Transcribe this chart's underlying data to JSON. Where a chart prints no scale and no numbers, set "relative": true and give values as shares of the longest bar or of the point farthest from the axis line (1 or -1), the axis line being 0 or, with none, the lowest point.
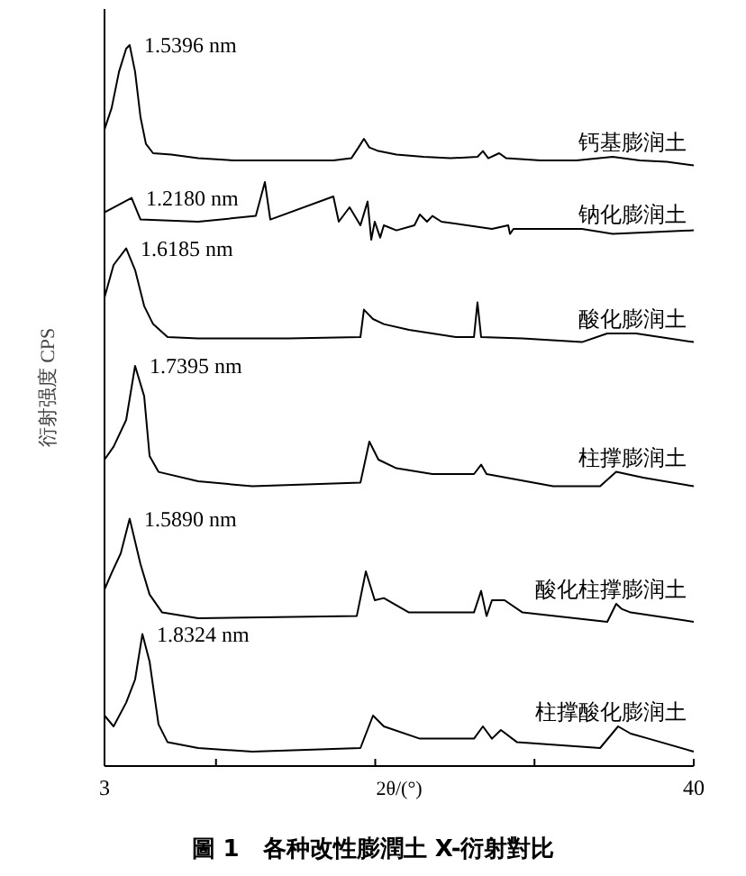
{
  "chart_data": {
    "type": "line",
    "relative": true,
    "title": "圖 1　各种改性膨潤土 X-衍射對比",
    "xlabel": "2θ/(°)",
    "ylabel": "衍射强度 CPS",
    "xlim": [
      3,
      40
    ],
    "xticks": [
      3,
      {
        "value": 10,
        "label": null
      },
      {
        "value": 20,
        "label": null
      },
      {
        "value": 30,
        "label": null
      },
      40
    ],
    "series": [
      {
        "name": "钙基膨润土",
        "color": "#000000",
        "x": [
          3.0,
          3.45,
          3.91,
          4.36,
          4.58,
          4.92,
          5.26,
          5.6,
          6.05,
          7.19,
          8.88,
          11.15,
          14.54,
          17.37,
          18.5,
          18.95,
          19.29,
          19.63,
          20.2,
          21.33,
          23.03,
          24.72,
          26.42,
          26.76,
          27.1,
          27.78,
          28.23,
          30.38,
          32.64,
          34.91,
          36.61,
          38.3,
          40.0
        ],
        "values": [
          0.883,
          0.913,
          0.963,
          0.995,
          1.0,
          0.963,
          0.9,
          0.863,
          0.85,
          0.848,
          0.843,
          0.84,
          0.84,
          0.84,
          0.843,
          0.858,
          0.87,
          0.858,
          0.853,
          0.848,
          0.845,
          0.843,
          0.845,
          0.853,
          0.843,
          0.85,
          0.843,
          0.84,
          0.84,
          0.845,
          0.84,
          0.838,
          0.833
        ]
      },
      {
        "name": "钠化膨润土",
        "color": "#000000",
        "x": [
          3.0,
          4.7,
          5.26,
          8.88,
          12.5,
          13.07,
          13.41,
          17.37,
          17.71,
          18.39,
          19.07,
          19.52,
          19.75,
          19.97,
          20.31,
          20.54,
          21.33,
          22.46,
          22.8,
          23.25,
          23.59,
          24.16,
          27.33,
          28.35,
          28.46,
          28.68,
          32.98,
          34.91,
          40.0
        ],
        "values": [
          0.768,
          0.788,
          0.758,
          0.755,
          0.763,
          0.81,
          0.758,
          0.79,
          0.755,
          0.775,
          0.75,
          0.783,
          0.73,
          0.755,
          0.733,
          0.75,
          0.743,
          0.75,
          0.765,
          0.755,
          0.763,
          0.755,
          0.745,
          0.75,
          0.738,
          0.745,
          0.745,
          0.738,
          0.743
        ]
      },
      {
        "name": "酸化膨润土",
        "color": "#000000",
        "x": [
          3.0,
          3.57,
          4.36,
          4.92,
          5.49,
          6.05,
          6.96,
          8.88,
          14.54,
          19.07,
          19.29,
          19.86,
          20.54,
          22.12,
          25.06,
          26.2,
          26.42,
          26.65,
          29.25,
          32.98,
          34.57,
          36.38,
          40.0
        ],
        "values": [
          0.65,
          0.695,
          0.718,
          0.688,
          0.638,
          0.613,
          0.595,
          0.593,
          0.593,
          0.595,
          0.633,
          0.62,
          0.613,
          0.605,
          0.595,
          0.595,
          0.643,
          0.595,
          0.593,
          0.588,
          0.6,
          0.6,
          0.588
        ]
      },
      {
        "name": "柱撑膨润土",
        "color": "#000000",
        "x": [
          3.0,
          3.57,
          4.36,
          4.92,
          5.49,
          5.83,
          6.39,
          8.88,
          12.28,
          19.07,
          19.63,
          20.2,
          21.33,
          23.59,
          26.2,
          26.65,
          26.99,
          31.17,
          34.12,
          35.13,
          36.83,
          40.0
        ],
        "values": [
          0.425,
          0.443,
          0.48,
          0.555,
          0.513,
          0.43,
          0.408,
          0.395,
          0.388,
          0.393,
          0.45,
          0.425,
          0.413,
          0.405,
          0.405,
          0.418,
          0.405,
          0.388,
          0.388,
          0.408,
          0.4,
          0.388
        ]
      },
      {
        "name": "酸化柱撑膨润土",
        "color": "#000000",
        "x": [
          3.0,
          3.45,
          4.02,
          4.58,
          5.26,
          5.83,
          6.62,
          8.88,
          18.84,
          19.41,
          19.97,
          20.54,
          22.12,
          26.2,
          26.65,
          26.99,
          27.33,
          28.12,
          29.25,
          34.57,
          35.13,
          35.47,
          36.04,
          40.0
        ],
        "values": [
          0.245,
          0.268,
          0.295,
          0.343,
          0.28,
          0.238,
          0.213,
          0.205,
          0.208,
          0.27,
          0.23,
          0.233,
          0.213,
          0.213,
          0.243,
          0.208,
          0.23,
          0.23,
          0.213,
          0.2,
          0.225,
          0.218,
          0.213,
          0.2
        ]
      },
      {
        "name": "柱撑酸化膨润土",
        "color": "#000000",
        "x": [
          3.0,
          3.57,
          4.36,
          4.92,
          5.38,
          5.83,
          6.39,
          6.96,
          8.88,
          12.28,
          19.07,
          19.86,
          20.54,
          22.8,
          26.2,
          26.76,
          27.33,
          27.89,
          28.91,
          34.12,
          35.25,
          36.04,
          37.17,
          40.0
        ],
        "values": [
          0.07,
          0.055,
          0.088,
          0.12,
          0.183,
          0.145,
          0.058,
          0.033,
          0.025,
          0.02,
          0.025,
          0.07,
          0.055,
          0.038,
          0.038,
          0.055,
          0.038,
          0.05,
          0.033,
          0.025,
          0.055,
          0.045,
          0.038,
          0.02
        ]
      }
    ],
    "annotations": [
      {
        "text": "1.5396 nm",
        "x": 4.58,
        "y": 1.0
      },
      {
        "text": "1.2180 nm",
        "x": 4.7,
        "y": 0.788
      },
      {
        "text": "1.6185 nm",
        "x": 4.36,
        "y": 0.718
      },
      {
        "text": "1.7395 nm",
        "x": 4.92,
        "y": 0.555
      },
      {
        "text": "1.5890 nm",
        "x": 4.58,
        "y": 0.343
      },
      {
        "text": "1.8324 nm",
        "x": 5.38,
        "y": 0.183
      }
    ]
  }
}
